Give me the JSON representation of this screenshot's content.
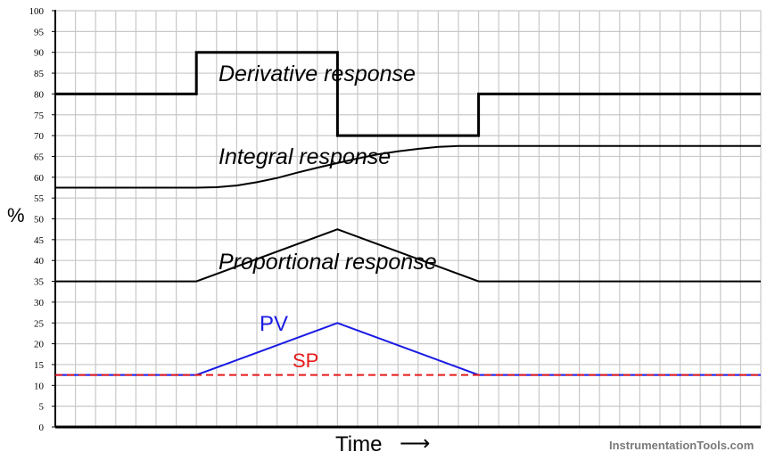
{
  "chart_data": {
    "type": "line",
    "ylabel": "%",
    "xlabel": "Time",
    "xlabel_arrow": "⟶",
    "ylim": [
      0,
      100
    ],
    "xlim": [
      0,
      35
    ],
    "yticks": [
      0,
      5,
      10,
      15,
      20,
      25,
      30,
      35,
      40,
      45,
      50,
      55,
      60,
      65,
      70,
      75,
      80,
      85,
      90,
      95,
      100
    ],
    "grid": true,
    "series": [
      {
        "name": "PV",
        "color": "#1a1ae6",
        "dash": false,
        "points": [
          [
            0,
            12.5
          ],
          [
            7,
            12.5
          ],
          [
            14,
            25
          ],
          [
            21,
            12.5
          ],
          [
            35,
            12.5
          ]
        ]
      },
      {
        "name": "SP",
        "color": "#e61a1a",
        "dash": true,
        "points": [
          [
            0,
            12.5
          ],
          [
            35,
            12.5
          ]
        ]
      },
      {
        "name": "Proportional response",
        "color": "#000000",
        "dash": false,
        "points": [
          [
            0,
            35
          ],
          [
            7,
            35
          ],
          [
            14,
            47.5
          ],
          [
            21,
            35
          ],
          [
            35,
            35
          ]
        ]
      },
      {
        "name": "Integral response",
        "color": "#000000",
        "dash": false,
        "points": [
          [
            0,
            57.5
          ],
          [
            7,
            57.5
          ],
          [
            8,
            57.6
          ],
          [
            9,
            58.0
          ],
          [
            10,
            58.8
          ],
          [
            11,
            59.8
          ],
          [
            12,
            61.1
          ],
          [
            13,
            62.3
          ],
          [
            14,
            63.4
          ],
          [
            15,
            64.5
          ],
          [
            16,
            65.5
          ],
          [
            17,
            66.2
          ],
          [
            18,
            66.8
          ],
          [
            19,
            67.3
          ],
          [
            20,
            67.5
          ],
          [
            21,
            67.5
          ],
          [
            35,
            67.5
          ]
        ]
      },
      {
        "name": "Derivative response",
        "color": "#000000",
        "dash": false,
        "thick": true,
        "points": [
          [
            0,
            80
          ],
          [
            7,
            80
          ],
          [
            7,
            90
          ],
          [
            14,
            90
          ],
          [
            14,
            70
          ],
          [
            21,
            70
          ],
          [
            21,
            80
          ],
          [
            35,
            80
          ]
        ]
      }
    ],
    "annotations": {
      "derivative": "Derivative response",
      "integral": "Integral response",
      "proportional": "Proportional response",
      "pv": "PV",
      "sp": "SP"
    }
  },
  "watermark": "InstrumentationTools.com"
}
